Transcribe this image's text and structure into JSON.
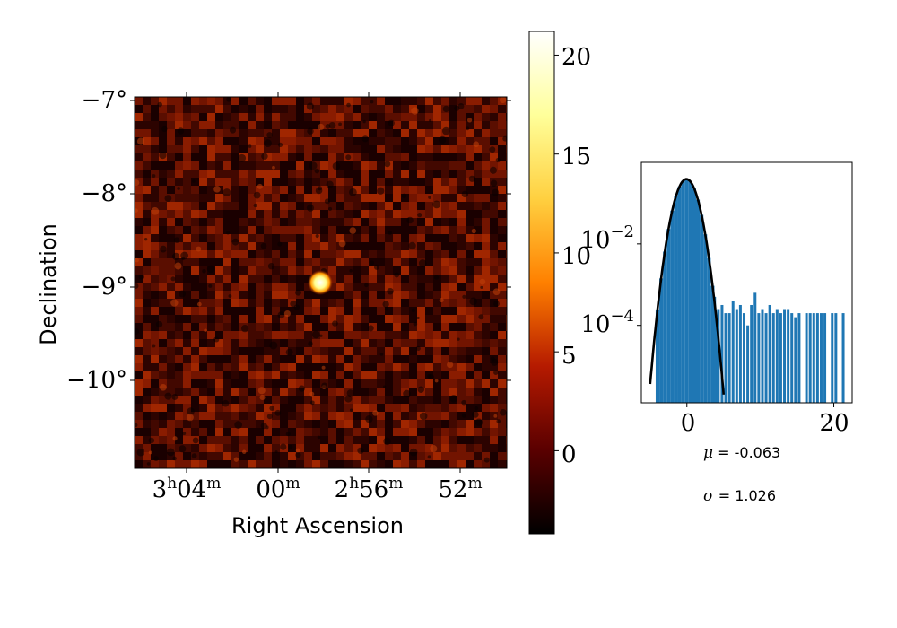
{
  "map": {
    "xlabel": "Right Ascension",
    "ylabel": "Declination",
    "x_ticks": [
      {
        "h": "3",
        "m": "04",
        "full": true
      },
      {
        "h": "",
        "m": "00",
        "full": false
      },
      {
        "h": "2",
        "m": "56",
        "full": true
      },
      {
        "h": "",
        "m": "52",
        "full": false
      }
    ],
    "y_ticks": [
      "−7°",
      "−8°",
      "−9°",
      "−10°"
    ],
    "source_position": {
      "ra_label": "~2h58m",
      "dec_deg": -8.95
    },
    "cmap": "afmhot"
  },
  "colorbar": {
    "ticks": [
      "0",
      "5",
      "10",
      "15",
      "20"
    ],
    "range": [
      -4.2,
      21.2
    ],
    "colors": [
      "#000000",
      "#5a0000",
      "#b51a00",
      "#ff8000",
      "#ffd040",
      "#ffff9a",
      "#ffffff"
    ]
  },
  "chart_data": {
    "type": "histogram",
    "yscale": "log",
    "x_ticks": [
      "0",
      "20"
    ],
    "y_ticks": [
      {
        "base": "10",
        "exp": "−2"
      },
      {
        "base": "10",
        "exp": "−4"
      }
    ],
    "xlim": [
      -6.2,
      22.5
    ],
    "ylim_log10": [
      -5.9,
      -0.0
    ],
    "bin_width": 0.5,
    "bar_color": "#1f77b4",
    "fit": {
      "type": "gaussian",
      "mu": -0.063,
      "sigma": 1.026,
      "color": "#000000"
    },
    "tail_bins_x": [
      3.6,
      4.1,
      4.6,
      5.1,
      5.6,
      6.1,
      6.6,
      7.1,
      7.6,
      8.1,
      8.6,
      9.1,
      9.6,
      10.1,
      10.6,
      11.1,
      11.6,
      12.1,
      12.6,
      13.1,
      13.6,
      14.1,
      14.6,
      15.1,
      16.1,
      16.6,
      17.1,
      17.6,
      18.1,
      18.6,
      19.6,
      20.1,
      21.1
    ],
    "tail_bins_log10": [
      -3.3,
      -3.6,
      -3.5,
      -3.7,
      -3.7,
      -3.4,
      -3.6,
      -3.5,
      -3.7,
      -4.0,
      -3.5,
      -3.2,
      -3.7,
      -3.6,
      -3.7,
      -3.5,
      -3.7,
      -3.6,
      -3.7,
      -3.6,
      -3.6,
      -3.7,
      -3.8,
      -3.7,
      -3.7,
      -3.7,
      -3.7,
      -3.7,
      -3.7,
      -3.7,
      -3.7,
      -3.7,
      -3.7
    ]
  },
  "stats": {
    "mu_symbol": "μ",
    "mu_text": " = -0.063",
    "sigma_symbol": "σ",
    "sigma_text": " = 1.026"
  }
}
